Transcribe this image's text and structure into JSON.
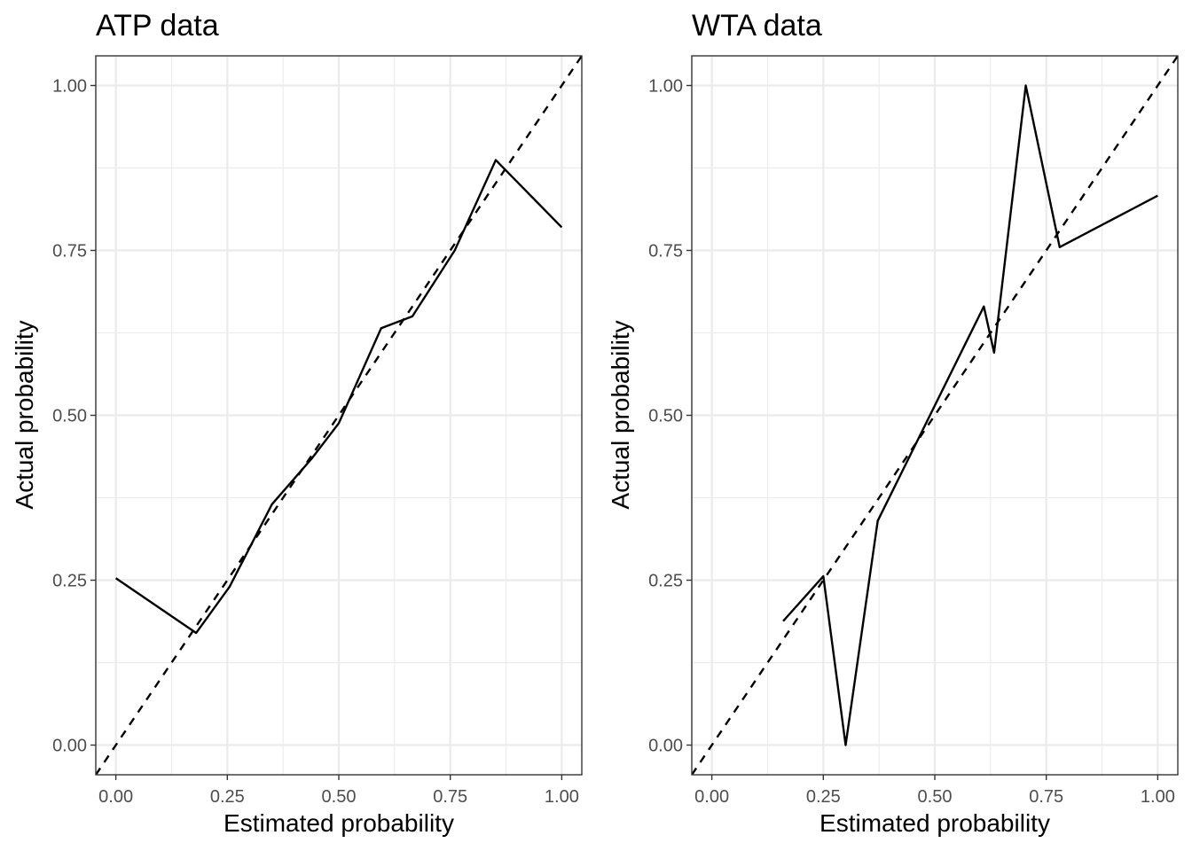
{
  "chart_data": [
    {
      "type": "line",
      "title": "ATP data",
      "xlabel": "Estimated probability",
      "ylabel": "Actual probability",
      "xlim": [
        -0.045,
        1.045
      ],
      "ylim": [
        -0.045,
        1.045
      ],
      "x_ticks": [
        "0.00",
        "0.25",
        "0.50",
        "0.75",
        "1.00"
      ],
      "y_ticks": [
        "0.00",
        "0.25",
        "0.50",
        "0.75",
        "1.00"
      ],
      "grid": true,
      "reference_line": "y = x (dashed)",
      "series": [
        {
          "x": [
            0.0,
            0.18,
            0.255,
            0.35,
            0.44,
            0.5,
            0.595,
            0.665,
            0.76,
            0.852,
            1.0
          ],
          "y": [
            0.253,
            0.17,
            0.24,
            0.365,
            0.435,
            0.488,
            0.632,
            0.65,
            0.75,
            0.887,
            0.785
          ]
        }
      ]
    },
    {
      "type": "line",
      "title": "WTA data",
      "xlabel": "Estimated probability",
      "ylabel": "Actual probability",
      "xlim": [
        -0.045,
        1.045
      ],
      "ylim": [
        -0.045,
        1.045
      ],
      "x_ticks": [
        "0.00",
        "0.25",
        "0.50",
        "0.75",
        "1.00"
      ],
      "y_ticks": [
        "0.00",
        "0.25",
        "0.50",
        "0.75",
        "1.00"
      ],
      "grid": true,
      "reference_line": "y = x (dashed)",
      "series": [
        {
          "x": [
            0.16,
            0.25,
            0.3,
            0.372,
            0.61,
            0.633,
            0.704,
            0.78,
            1.0
          ],
          "y": [
            0.188,
            0.256,
            0.0,
            0.34,
            0.665,
            0.595,
            1.0,
            0.755,
            0.833
          ]
        }
      ]
    }
  ]
}
